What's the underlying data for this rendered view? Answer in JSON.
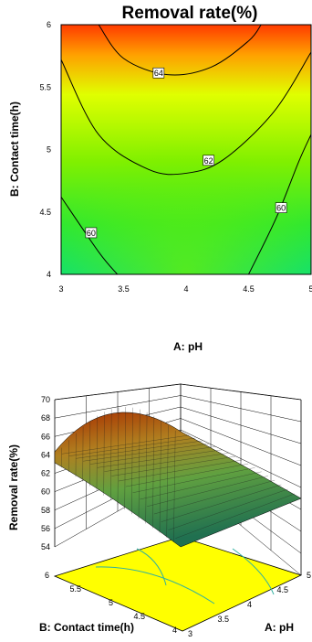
{
  "chart_data": [
    {
      "type": "contour",
      "title": "Removal rate(%)",
      "xlabel": "A: pH",
      "ylabel": "B: Contact time(h)",
      "xlim": [
        3,
        5
      ],
      "ylim": [
        4,
        6
      ],
      "x_ticks": [
        "3",
        "3.5",
        "4",
        "4.5",
        "5"
      ],
      "y_ticks": [
        "4",
        "4.5",
        "5",
        "5.5",
        "6"
      ],
      "contour_levels": [
        {
          "value": 64,
          "label": "64",
          "points": [
            [
              3.3,
              6.0
            ],
            [
              3.5,
              5.73
            ],
            [
              3.85,
              5.6
            ],
            [
              4.2,
              5.66
            ],
            [
              4.5,
              5.87
            ],
            [
              4.6,
              6.0
            ]
          ]
        },
        {
          "value": 62,
          "label": "62",
          "points": [
            [
              3.0,
              5.72
            ],
            [
              3.3,
              5.12
            ],
            [
              3.7,
              4.84
            ],
            [
              4.0,
              4.81
            ],
            [
              4.3,
              4.92
            ],
            [
              4.7,
              5.3
            ],
            [
              5.0,
              5.78
            ]
          ]
        },
        {
          "value": 60,
          "label": "60",
          "points": [
            [
              3.0,
              4.62
            ],
            [
              3.3,
              4.18
            ],
            [
              3.45,
              4.0
            ]
          ]
        },
        {
          "value": 60,
          "label": "60",
          "points": [
            [
              4.5,
              4.0
            ],
            [
              4.72,
              4.45
            ],
            [
              4.9,
              4.9
            ],
            [
              5.0,
              5.12
            ]
          ]
        }
      ],
      "label_positions": [
        {
          "text": "64",
          "x": 3.78,
          "y": 5.61
        },
        {
          "text": "62",
          "x": 4.18,
          "y": 4.91
        },
        {
          "text": "60",
          "x": 3.24,
          "y": 4.33
        },
        {
          "text": "60",
          "x": 4.76,
          "y": 4.53
        }
      ]
    },
    {
      "type": "surface3d",
      "zlabel": "Removal rate(%)",
      "xlabel": "A: pH",
      "ylabel": "B: Contact time(h)",
      "x_ticks": [
        "3",
        "3.5",
        "4",
        "4.5",
        "5"
      ],
      "y_ticks": [
        "4",
        "4.5",
        "5",
        "5.5",
        "6"
      ],
      "z_ticks": [
        "54",
        "56",
        "58",
        "60",
        "62",
        "64",
        "66",
        "68",
        "70"
      ],
      "zlim": [
        54,
        70
      ]
    }
  ]
}
